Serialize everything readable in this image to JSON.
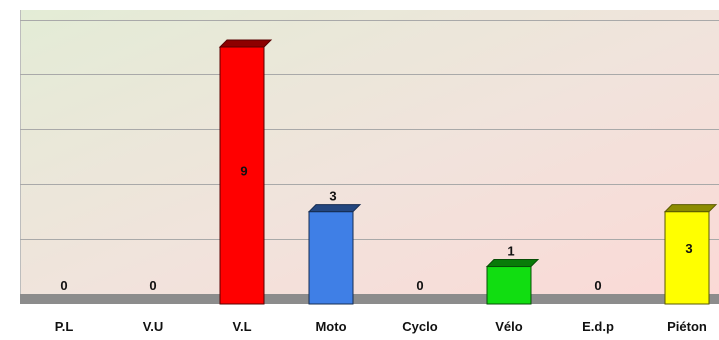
{
  "chart_data": {
    "type": "bar",
    "categories": [
      "P.L",
      "V.U",
      "V.L",
      "Moto",
      "Cyclo",
      "Vélo",
      "E.d.p",
      "Piéton"
    ],
    "values": [
      0,
      0,
      9,
      3,
      0,
      1,
      0,
      3
    ],
    "colors": [
      "#ff0000",
      "#ff0000",
      "#ff0000",
      "#3f7fe6",
      "#ff0000",
      "#11dd11",
      "#ff0000",
      "#ffff00"
    ],
    "data_labels": [
      "0",
      "0",
      "9",
      "3",
      "0",
      "1",
      "0",
      "3"
    ],
    "ylim": [
      0,
      10
    ],
    "grid": true,
    "legend": "none"
  }
}
